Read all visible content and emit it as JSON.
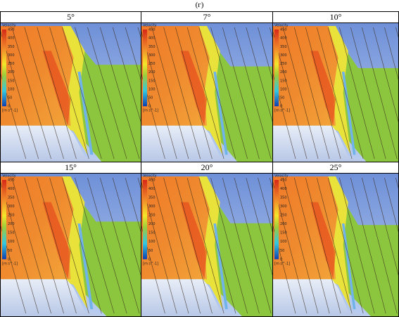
{
  "figure_label": "(г)",
  "legend": {
    "title": "Velocity",
    "ticks": [
      "450",
      "400",
      "350",
      "300",
      "250",
      "200",
      "150",
      "100",
      "50",
      "0"
    ],
    "unit": "[m s^-1]"
  },
  "panels": [
    {
      "title": "5°"
    },
    {
      "title": "7°"
    },
    {
      "title": "10°"
    },
    {
      "title": "15°"
    },
    {
      "title": "20°"
    },
    {
      "title": "25°"
    }
  ]
}
